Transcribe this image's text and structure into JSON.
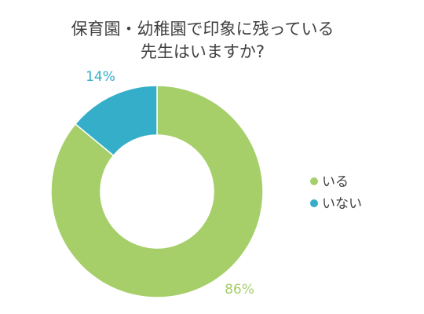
{
  "chart_data": {
    "type": "pie",
    "title_lines": [
      "保育園・幼稚園で印象に残っている",
      "先生はいますか?"
    ],
    "series": [
      {
        "name": "いる",
        "value": 86,
        "label": "86%",
        "color": "#a6cf6a"
      },
      {
        "name": "いない",
        "value": 14,
        "label": "14%",
        "color": "#35aec9"
      }
    ],
    "legend_placement": "right",
    "donut": true
  }
}
